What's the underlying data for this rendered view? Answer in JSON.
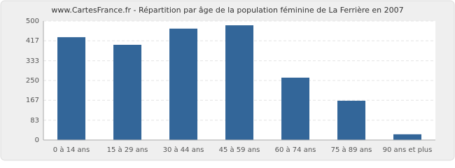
{
  "chart_data": {
    "type": "bar",
    "title": "www.CartesFrance.fr - Répartition par âge de la population féminine de La Ferrière en 2007",
    "categories": [
      "0 à 14 ans",
      "15 à 29 ans",
      "30 à 44 ans",
      "45 à 59 ans",
      "60 à 74 ans",
      "75 à 89 ans",
      "90 ans et plus"
    ],
    "values": [
      432,
      400,
      468,
      482,
      262,
      165,
      24
    ],
    "color": "#336699",
    "ylim": [
      0,
      500
    ],
    "yticks": [
      0,
      83,
      167,
      250,
      333,
      417,
      500
    ],
    "grid": true
  }
}
